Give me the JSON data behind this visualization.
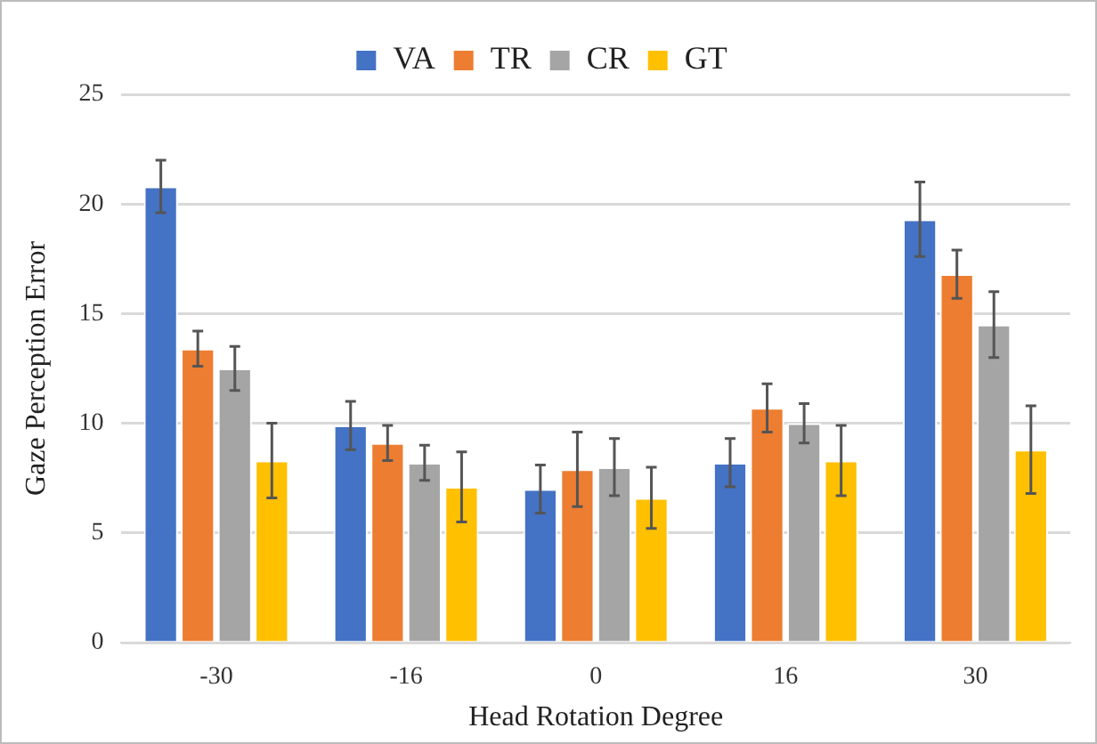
{
  "chart_data": {
    "type": "bar",
    "xlabel": "Head Rotation Degree",
    "ylabel": "Gaze Perception Error",
    "categories": [
      "-30",
      "-16",
      "0",
      "16",
      "30"
    ],
    "series": [
      {
        "name": "VA",
        "color": "#4472c4",
        "values": [
          20.8,
          9.9,
          7.0,
          8.2,
          19.3
        ],
        "errors": [
          1.2,
          1.1,
          1.1,
          1.1,
          1.7
        ]
      },
      {
        "name": "TR",
        "color": "#ed7d31",
        "values": [
          13.4,
          9.1,
          7.9,
          10.7,
          16.8
        ],
        "errors": [
          0.8,
          0.8,
          1.7,
          1.1,
          1.1
        ]
      },
      {
        "name": "CR",
        "color": "#a5a5a5",
        "values": [
          12.5,
          8.2,
          8.0,
          10.0,
          14.5
        ],
        "errors": [
          1.0,
          0.8,
          1.3,
          0.9,
          1.5
        ]
      },
      {
        "name": "GT",
        "color": "#ffc000",
        "values": [
          8.3,
          7.1,
          6.6,
          8.3,
          8.8
        ],
        "errors": [
          1.7,
          1.6,
          1.4,
          1.6,
          2.0
        ]
      }
    ],
    "ylim": [
      0,
      25
    ],
    "yticks": [
      0,
      5,
      10,
      15,
      20,
      25
    ],
    "grid": "y",
    "legend": "top"
  }
}
